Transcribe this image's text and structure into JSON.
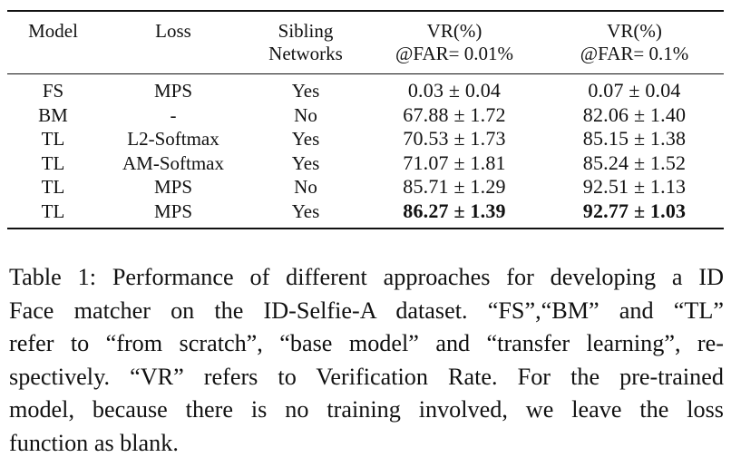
{
  "table": {
    "headers": {
      "model": "Model",
      "loss": "Loss",
      "sibling_line1": "Sibling",
      "sibling_line2": "Networks",
      "vr1_line1": "VR(%)",
      "vr1_line2": "@FAR= 0.01%",
      "vr2_line1": "VR(%)",
      "vr2_line2": "@FAR= 0.1%"
    },
    "rows": [
      {
        "model": "FS",
        "loss": "MPS",
        "sibling": "Yes",
        "vr001": "0.03 ± 0.04",
        "vr01": "0.07 ± 0.04"
      },
      {
        "model": "BM",
        "loss": "-",
        "sibling": "No",
        "vr001": "67.88 ± 1.72",
        "vr01": "82.06 ± 1.40"
      },
      {
        "model": "TL",
        "loss": "L2-Softmax",
        "sibling": "Yes",
        "vr001": "70.53 ± 1.73",
        "vr01": "85.15 ± 1.38"
      },
      {
        "model": "TL",
        "loss": "AM-Softmax",
        "sibling": "Yes",
        "vr001": "71.07 ± 1.81",
        "vr01": "85.24 ± 1.52"
      },
      {
        "model": "TL",
        "loss": "MPS",
        "sibling": "No",
        "vr001": "85.71 ± 1.29",
        "vr01": "92.51 ± 1.13"
      },
      {
        "model": "TL",
        "loss": "MPS",
        "sibling": "Yes",
        "vr001": "86.27 ± 1.39",
        "vr01": "92.77 ± 1.03"
      }
    ]
  },
  "caption": {
    "lines": [
      "Table 1: Performance of different approaches for developing a ID",
      "Face matcher on the ID-Selfie-A dataset. “FS”,“BM” and “TL”",
      "refer to “from scratch”, “base model” and “transfer learning”, re-",
      "spectively. “VR” refers to Verification Rate. For the pre-trained",
      "model, because there is no training involved, we leave the loss",
      "function as blank."
    ]
  }
}
